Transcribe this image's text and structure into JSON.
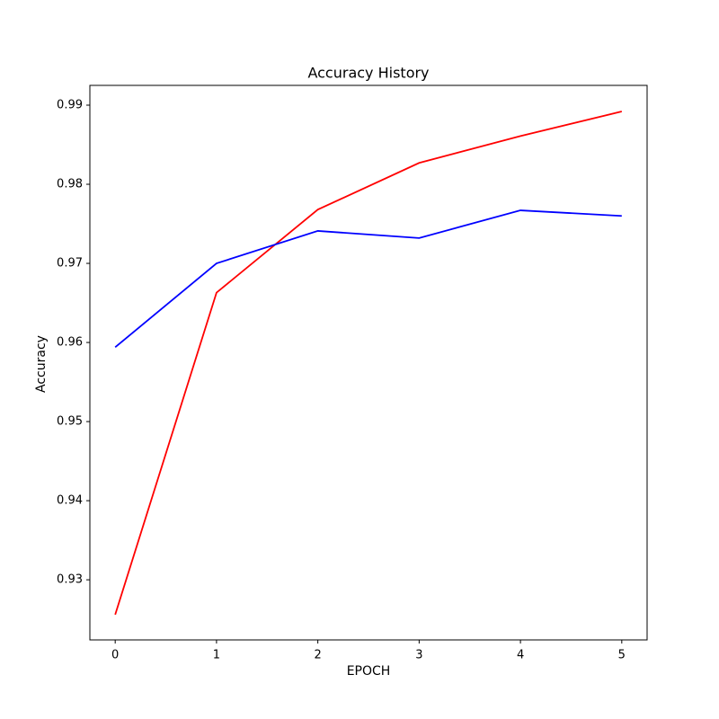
{
  "chart_data": {
    "type": "line",
    "title": "Accuracy History",
    "x_label": "EPOCH",
    "y_label": "Accuracy",
    "x": [
      0,
      1,
      2,
      3,
      4,
      5
    ],
    "series": [
      {
        "color": "#ff0000",
        "values": [
          0.9256,
          0.9663,
          0.9768,
          0.9827,
          0.9861,
          0.9892
        ]
      },
      {
        "color": "#0000ff",
        "values": [
          0.9594,
          0.97,
          0.9741,
          0.9732,
          0.9767,
          0.976
        ]
      }
    ],
    "xlim": [
      -0.25,
      5.25
    ],
    "xticks": [
      0,
      1,
      2,
      3,
      4,
      5
    ],
    "ylim": [
      0.9224,
      0.9925
    ],
    "yticks": [
      0.93,
      0.94,
      0.95,
      0.96,
      0.97,
      0.98,
      0.99
    ]
  }
}
